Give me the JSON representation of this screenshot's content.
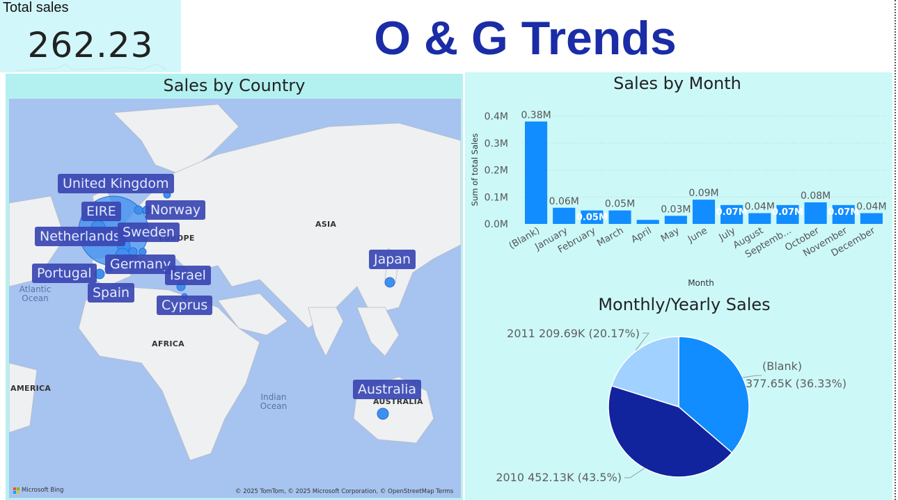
{
  "kpi": {
    "label": "Total sales",
    "value": "262.23"
  },
  "title": "O & G Trends",
  "map": {
    "title": "Sales by Country",
    "countries": [
      "United Kingdom",
      "EIRE",
      "Norway",
      "Netherlands",
      "Sweden",
      "Portugal",
      "Germany",
      "Israel",
      "Spain",
      "Cyprus",
      "Japan",
      "Australia"
    ],
    "regions": [
      "ASIA",
      "EUROPE",
      "AFRICA",
      "AMERICA",
      "AUSTRALIA"
    ],
    "oceans": [
      "Atlantic Ocean",
      "Indian Ocean"
    ],
    "attribution": "© 2025 TomTom, © 2025 Microsoft Corporation, © OpenStreetMap  Terms",
    "provider": "Microsoft Bing",
    "colors": {
      "bubble": "#3f8ff0",
      "label_bg": "#3b47b3",
      "water": "#a7c3ef",
      "land": "#eef0f2"
    }
  },
  "bar_chart": {
    "title": "Sales by Month",
    "ylabel": "Sum of total Sales",
    "xlabel": "Month",
    "color": "#118dff"
  },
  "pie_chart": {
    "title": "Monthly/Yearly Sales"
  },
  "chart_data": [
    {
      "type": "bar",
      "title": "Sales by Month",
      "xlabel": "Month",
      "ylabel": "Sum of total Sales",
      "categories": [
        "(Blank)",
        "January",
        "February",
        "March",
        "April",
        "May",
        "June",
        "July",
        "August",
        "Septemb...",
        "October",
        "November",
        "December"
      ],
      "values": [
        0.38,
        0.06,
        0.05,
        0.05,
        0.015,
        0.03,
        0.09,
        0.07,
        0.04,
        0.07,
        0.08,
        0.07,
        0.04
      ],
      "labels": [
        "0.38M",
        "0.06M",
        "0.05M",
        "0.05M",
        "",
        "0.03M",
        "0.09M",
        "0.07M",
        "0.04M",
        "0.07M",
        "0.08M",
        "0.07M",
        "0.04M"
      ],
      "yticks": [
        "0.0M",
        "0.1M",
        "0.2M",
        "0.3M",
        "0.4M"
      ],
      "ylim": [
        0,
        0.4
      ],
      "grid": true
    },
    {
      "type": "pie",
      "title": "Monthly/Yearly Sales",
      "slices": [
        {
          "label": "(Blank)",
          "value": 377.65,
          "pct": 36.33,
          "text1": "(Blank)",
          "text2": "377.65K (36.33%)",
          "color": "#118dff"
        },
        {
          "label": "2010",
          "value": 452.13,
          "pct": 43.5,
          "text1": "2010 452.13K (43.5%)",
          "color": "#12239e"
        },
        {
          "label": "2011",
          "value": 209.69,
          "pct": 20.17,
          "text1": "2011 209.69K (20.17%)",
          "color": "#a0d1ff"
        }
      ]
    }
  ]
}
